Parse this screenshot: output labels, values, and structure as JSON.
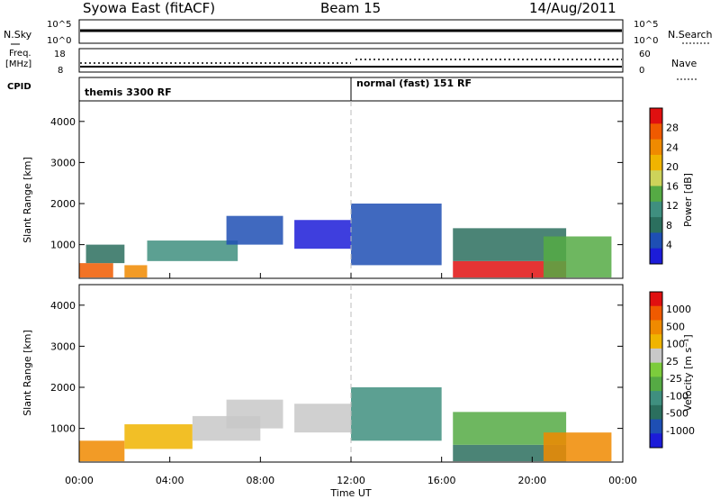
{
  "header": {
    "station": "Syowa East (fitACF)",
    "beam": "Beam 15",
    "date": "14/Aug/2011"
  },
  "top_panels": {
    "nsky_label": "N.Sky",
    "nsky_ticks": [
      "10^5",
      "10^0"
    ],
    "nsearch_ticks": [
      "10^5",
      "10^0"
    ],
    "nsearch_label": "N.Search",
    "freq_label_line1": "Freq.",
    "freq_label_line2": "[MHz]",
    "freq_ticks": [
      "18",
      "8"
    ],
    "nave_ticks": [
      "60",
      "0"
    ],
    "nave_label": "Nave",
    "cpid_label": "CPID",
    "cpid_segments": [
      {
        "label": "themis 3300 RF",
        "start_hour": 0
      },
      {
        "label": "normal (fast) 151 RF",
        "start_hour": 12
      }
    ]
  },
  "chart_data": [
    {
      "type": "heatmap",
      "panel": "power",
      "xlabel": "",
      "ylabel": "Slant Range [km]",
      "ylim": [
        180,
        4500
      ],
      "yticks": [
        "1000",
        "2000",
        "3000",
        "4000"
      ],
      "colorbar_label": "Power [dB]",
      "colorbar_ticks": [
        "28",
        "24",
        "20",
        "16",
        "12",
        "8",
        "4"
      ],
      "colormap": [
        "#1c1cd8",
        "#1e4fb4",
        "#2b6f5e",
        "#3f8f7f",
        "#55aa44",
        "#cdd35a",
        "#f0b400",
        "#f08a00",
        "#f05a00",
        "#e01010"
      ],
      "cells": [
        {
          "t0": 0.0,
          "t1": 1.5,
          "r0": 200,
          "r1": 550,
          "level": 8
        },
        {
          "t0": 0.3,
          "t1": 2.0,
          "r0": 550,
          "r1": 1000,
          "level": 2
        },
        {
          "t0": 2.0,
          "t1": 3.0,
          "r0": 200,
          "r1": 500,
          "level": 7
        },
        {
          "t0": 3.0,
          "t1": 7.0,
          "r0": 600,
          "r1": 1100,
          "level": 3
        },
        {
          "t0": 6.5,
          "t1": 9.0,
          "r0": 1000,
          "r1": 1700,
          "level": 1
        },
        {
          "t0": 9.5,
          "t1": 12.0,
          "r0": 900,
          "r1": 1600,
          "level": 0
        },
        {
          "t0": 12.0,
          "t1": 16.0,
          "r0": 500,
          "r1": 2000,
          "level": 1
        },
        {
          "t0": 16.5,
          "t1": 21.5,
          "r0": 200,
          "r1": 600,
          "level": 9
        },
        {
          "t0": 16.5,
          "t1": 21.5,
          "r0": 600,
          "r1": 1400,
          "level": 2
        },
        {
          "t0": 20.5,
          "t1": 23.5,
          "r0": 200,
          "r1": 1200,
          "level": 4
        }
      ]
    },
    {
      "type": "heatmap",
      "panel": "velocity",
      "xlabel": "Time UT",
      "ylabel": "Slant Range [km]",
      "ylim": [
        180,
        4500
      ],
      "yticks": [
        "1000",
        "2000",
        "3000",
        "4000"
      ],
      "xticks": [
        "00:00",
        "04:00",
        "08:00",
        "12:00",
        "16:00",
        "20:00",
        "00:00"
      ],
      "colorbar_label": "Velocity [m s⁻¹]",
      "colorbar_ticks": [
        "1000",
        "500",
        "100",
        "25",
        "-25",
        "-100",
        "-500",
        "-1000"
      ],
      "colormap": [
        "#1c1cd8",
        "#1e4fb4",
        "#2b6f5e",
        "#3f8f7f",
        "#55aa44",
        "#7ccc3c",
        "#c8c8c8",
        "#f0b400",
        "#f08a00",
        "#f05a00",
        "#e01010"
      ],
      "cells": [
        {
          "t0": 0.0,
          "t1": 2.0,
          "r0": 200,
          "r1": 700,
          "level": 8
        },
        {
          "t0": 2.0,
          "t1": 5.0,
          "r0": 500,
          "r1": 1100,
          "level": 7
        },
        {
          "t0": 5.0,
          "t1": 8.0,
          "r0": 700,
          "r1": 1300,
          "level": 6
        },
        {
          "t0": 6.5,
          "t1": 9.0,
          "r0": 1000,
          "r1": 1700,
          "level": 6
        },
        {
          "t0": 9.5,
          "t1": 12.0,
          "r0": 900,
          "r1": 1600,
          "level": 6
        },
        {
          "t0": 12.0,
          "t1": 16.0,
          "r0": 700,
          "r1": 2000,
          "level": 3
        },
        {
          "t0": 16.5,
          "t1": 21.5,
          "r0": 200,
          "r1": 600,
          "level": 2
        },
        {
          "t0": 16.5,
          "t1": 21.5,
          "r0": 600,
          "r1": 1400,
          "level": 4
        },
        {
          "t0": 20.5,
          "t1": 23.5,
          "r0": 200,
          "r1": 900,
          "level": 8
        }
      ]
    }
  ]
}
